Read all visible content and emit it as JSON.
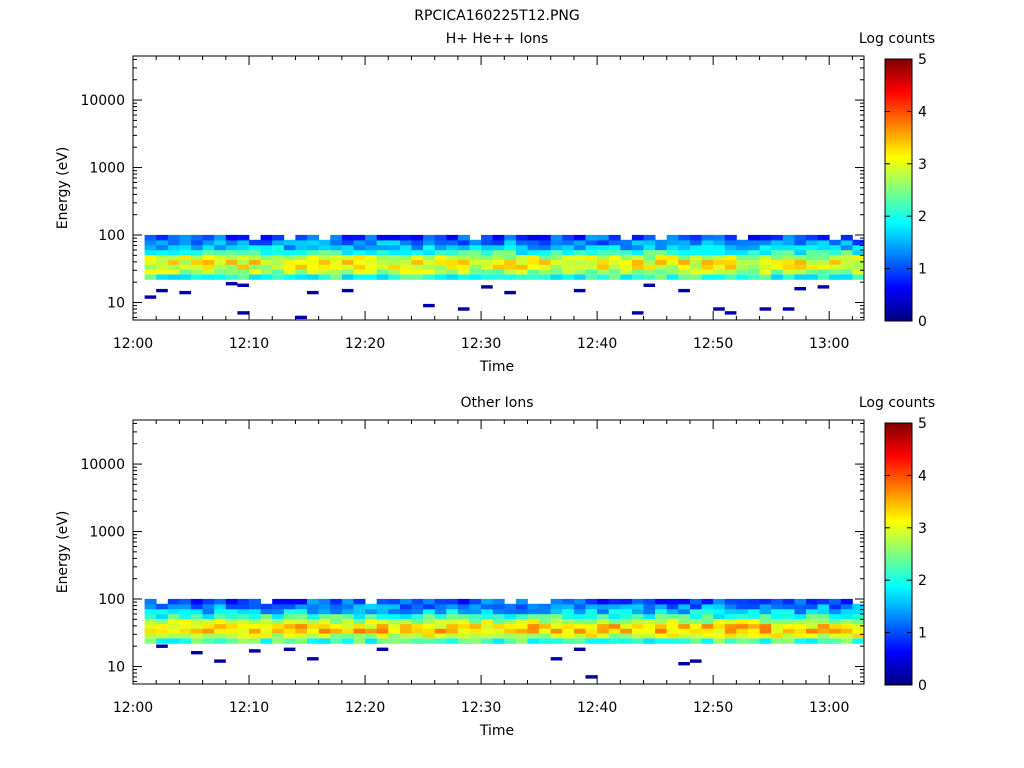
{
  "figure_title": "RPCICA160225T12.PNG",
  "colors": {
    "colormap": [
      "#00007f",
      "#0000ff",
      "#007fff",
      "#00ffff",
      "#7fff7f",
      "#ffff00",
      "#ff7f00",
      "#ff0000",
      "#7f0000"
    ]
  },
  "chart_data": [
    {
      "type": "heatmap",
      "title": "H+ He++ Ions",
      "xlabel": "Time",
      "ylabel": "Energy (eV)",
      "x_ticks": [
        "12:00",
        "12:10",
        "12:20",
        "12:30",
        "12:40",
        "12:50",
        "13:00"
      ],
      "xlim": [
        "12:00",
        "13:03"
      ],
      "y_scale": "log",
      "y_ticks": [
        "10",
        "100",
        "1000",
        "10000"
      ],
      "ylim": [
        5.5,
        45000
      ],
      "colorbar": {
        "label": "Log counts",
        "ticks": [
          "0",
          "1",
          "2",
          "3",
          "4",
          "5"
        ],
        "range": [
          0,
          5
        ]
      },
      "band": {
        "energy_bins": [
          24,
          29,
          34,
          40,
          47,
          56,
          66,
          78,
          92
        ],
        "bin_logcounts": [
          2.1,
          2.7,
          3.0,
          3.1,
          2.8,
          2.1,
          1.6,
          1.3,
          1.0
        ]
      },
      "sparse_counts": [
        {
          "time": "12:01",
          "energy": 12,
          "log": 0.2
        },
        {
          "time": "12:02",
          "energy": 15,
          "log": 0.2
        },
        {
          "time": "12:04",
          "energy": 14,
          "log": 0.2
        },
        {
          "time": "12:08",
          "energy": 19,
          "log": 0.2
        },
        {
          "time": "12:09",
          "energy": 7,
          "log": 0.2
        },
        {
          "time": "12:09",
          "energy": 18,
          "log": 0.2
        },
        {
          "time": "12:14",
          "energy": 6,
          "log": 0.2
        },
        {
          "time": "12:15",
          "energy": 14,
          "log": 0.2
        },
        {
          "time": "12:18",
          "energy": 15,
          "log": 0.2
        },
        {
          "time": "12:25",
          "energy": 9,
          "log": 0.2
        },
        {
          "time": "12:28",
          "energy": 8,
          "log": 0.2
        },
        {
          "time": "12:30",
          "energy": 17,
          "log": 0.2
        },
        {
          "time": "12:32",
          "energy": 14,
          "log": 0.2
        },
        {
          "time": "12:38",
          "energy": 15,
          "log": 0.2
        },
        {
          "time": "12:43",
          "energy": 7,
          "log": 0.2
        },
        {
          "time": "12:44",
          "energy": 18,
          "log": 0.2
        },
        {
          "time": "12:47",
          "energy": 15,
          "log": 0.2
        },
        {
          "time": "12:50",
          "energy": 8,
          "log": 0.2
        },
        {
          "time": "12:51",
          "energy": 7,
          "log": 0.2
        },
        {
          "time": "12:54",
          "energy": 8,
          "log": 0.2
        },
        {
          "time": "12:56",
          "energy": 8,
          "log": 0.2
        },
        {
          "time": "12:57",
          "energy": 16,
          "log": 0.2
        },
        {
          "time": "12:59",
          "energy": 17,
          "log": 0.2
        }
      ]
    },
    {
      "type": "heatmap",
      "title": "Other Ions",
      "xlabel": "Time",
      "ylabel": "Energy (eV)",
      "x_ticks": [
        "12:00",
        "12:10",
        "12:20",
        "12:30",
        "12:40",
        "12:50",
        "13:00"
      ],
      "xlim": [
        "12:00",
        "13:03"
      ],
      "y_scale": "log",
      "y_ticks": [
        "10",
        "100",
        "1000",
        "10000"
      ],
      "ylim": [
        5.5,
        45000
      ],
      "colorbar": {
        "label": "Log counts",
        "ticks": [
          "0",
          "1",
          "2",
          "3",
          "4",
          "5"
        ],
        "range": [
          0,
          5
        ]
      },
      "band": {
        "energy_bins": [
          24,
          29,
          34,
          40,
          47,
          56,
          66,
          78,
          92
        ],
        "bin_logcounts": [
          2.2,
          2.9,
          3.35,
          3.3,
          2.8,
          2.1,
          1.6,
          1.3,
          1.0
        ]
      },
      "sparse_counts": [
        {
          "time": "12:02",
          "energy": 20,
          "log": 0.2
        },
        {
          "time": "12:05",
          "energy": 16,
          "log": 0.2
        },
        {
          "time": "12:07",
          "energy": 12,
          "log": 0.2
        },
        {
          "time": "12:10",
          "energy": 17,
          "log": 0.2
        },
        {
          "time": "12:13",
          "energy": 18,
          "log": 0.2
        },
        {
          "time": "12:15",
          "energy": 13,
          "log": 0.2
        },
        {
          "time": "12:21",
          "energy": 18,
          "log": 0.2
        },
        {
          "time": "12:36",
          "energy": 13,
          "log": 0.2
        },
        {
          "time": "12:38",
          "energy": 18,
          "log": 0.2
        },
        {
          "time": "12:39",
          "energy": 7,
          "log": 0.2
        },
        {
          "time": "12:47",
          "energy": 11,
          "log": 0.2
        },
        {
          "time": "12:48",
          "energy": 12,
          "log": 0.2
        }
      ]
    }
  ]
}
